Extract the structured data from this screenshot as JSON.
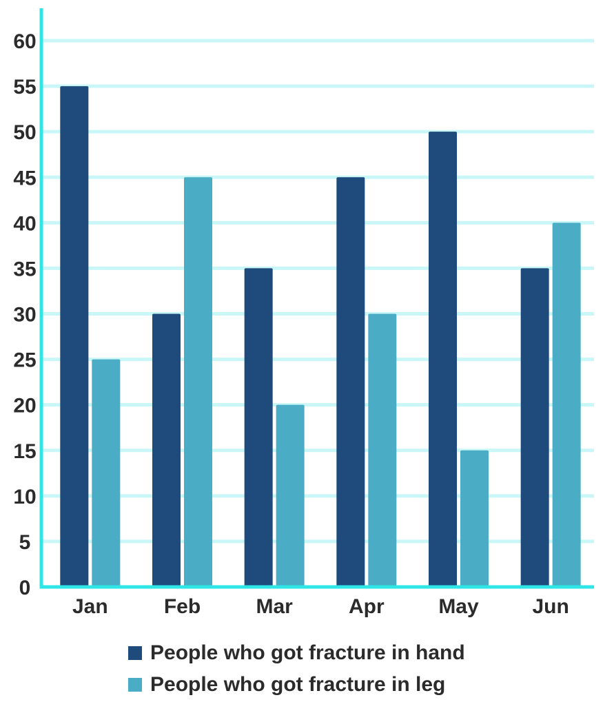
{
  "chart_data": {
    "type": "bar",
    "categories": [
      "Jan",
      "Feb",
      "Mar",
      "Apr",
      "May",
      "Jun"
    ],
    "series": [
      {
        "name": "People who got fracture in hand",
        "color": "#1f4a7c",
        "values": [
          55,
          30,
          35,
          45,
          50,
          35
        ]
      },
      {
        "name": "People who got fracture in leg",
        "color": "#4bacc6",
        "values": [
          25,
          45,
          20,
          30,
          15,
          40
        ]
      }
    ],
    "ylim": [
      0,
      60
    ],
    "yticks": [
      0,
      5,
      10,
      15,
      20,
      25,
      30,
      35,
      40,
      45,
      50,
      55,
      60
    ],
    "ytick_labels": [
      "0",
      "5",
      "10",
      "15",
      "20",
      "25",
      "30",
      "35",
      "40",
      "45",
      "50",
      "55",
      "60"
    ],
    "grid": true,
    "legend_position": "bottom",
    "axis_color": "#2ee6e6",
    "grid_color": "#c9f7f7"
  }
}
